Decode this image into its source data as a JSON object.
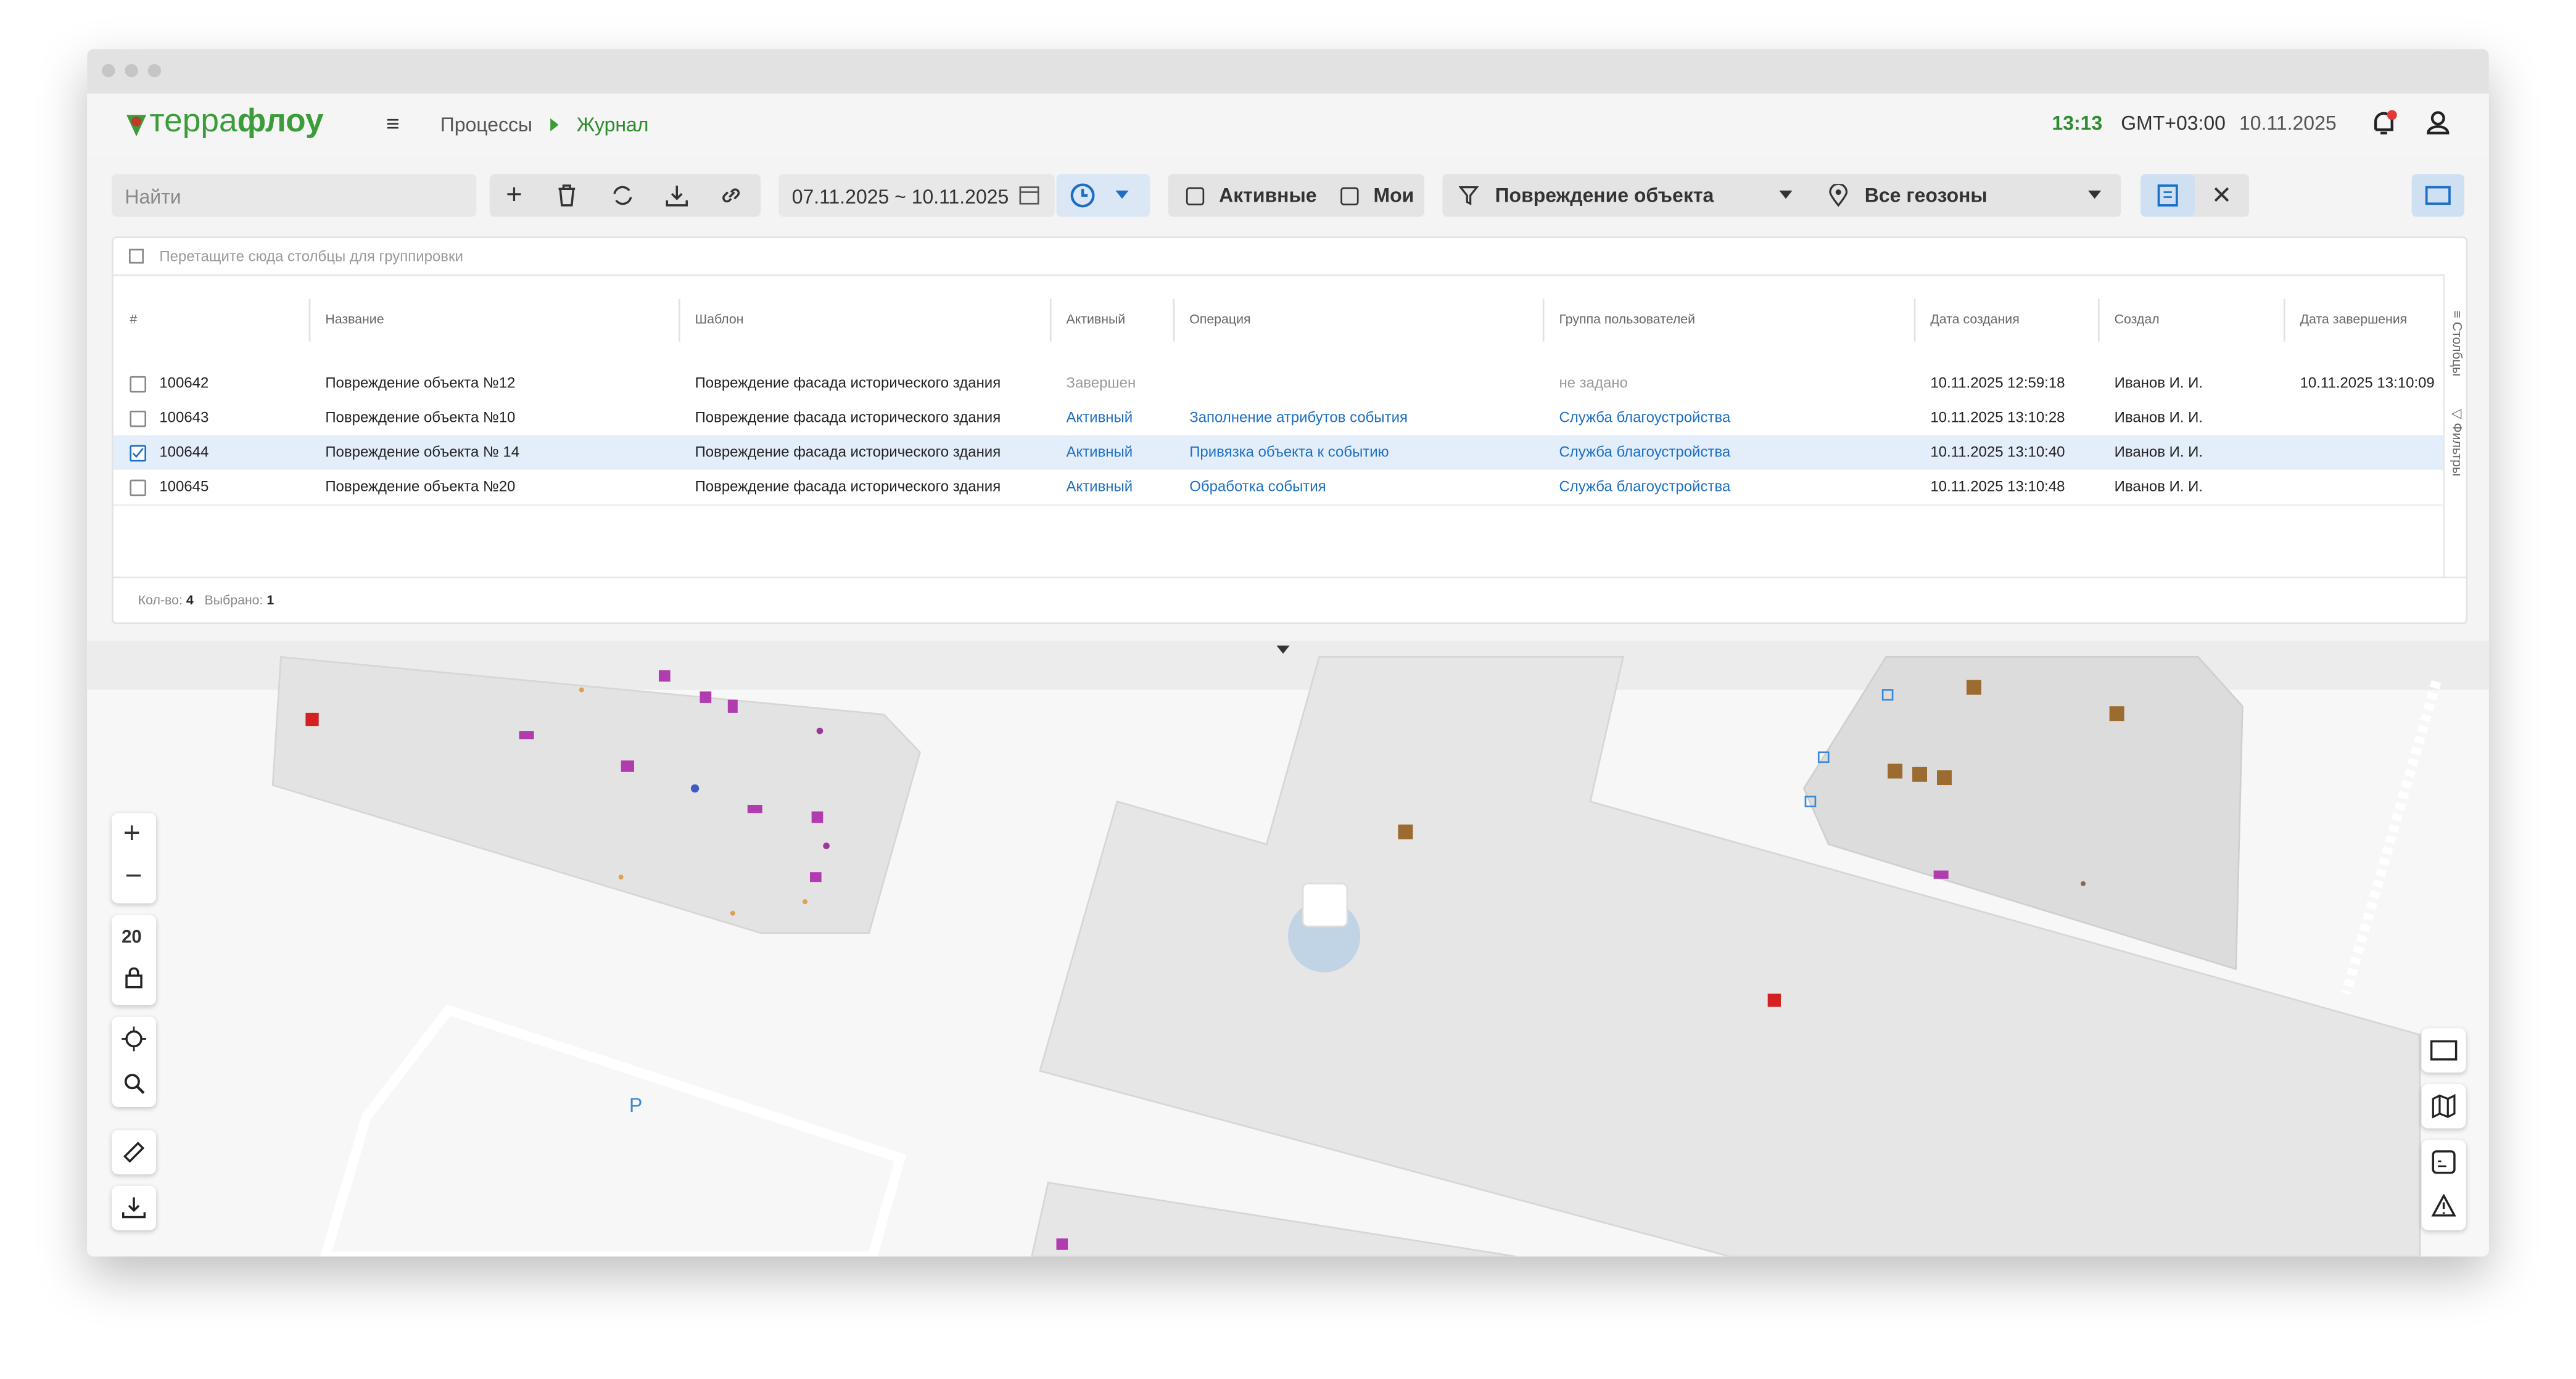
{
  "header": {
    "logo_a": "терра",
    "logo_b": "флоу",
    "breadcrumb": [
      "Процессы",
      "Журнал"
    ],
    "time": "13:13",
    "timezone": "GMT+03:00",
    "date": "10.11.2025"
  },
  "toolbar": {
    "search_placeholder": "Найти",
    "date_range": "07.11.2025 ~ 10.11.2025",
    "checkboxes": [
      "Активные",
      "Мои"
    ],
    "filter": "Повреждение объекта",
    "geozone": "Все геозоны"
  },
  "table": {
    "group_hint": "Перетащите сюда столбцы для группировки",
    "columns": [
      "#",
      "Название",
      "Шаблон",
      "Активный",
      "Операция",
      "Группа пользователей",
      "Дата создания",
      "Создал",
      "Дата завершения"
    ],
    "rows": [
      [
        "100642",
        "Повреждение объекта №12",
        "Повреждение фасада исторического здания",
        "Завершен",
        null,
        "не задано",
        "10.11.2025 12:59:18",
        "Иванов И. И.",
        "10.11.2025 13:10:09"
      ],
      [
        "100643",
        "Повреждение объекта №10",
        "Повреждение фасада исторического здания",
        "Активный",
        "Заполнение атрибутов события",
        "Служба благоустройства",
        "10.11.2025 13:10:28",
        "Иванов И. И.",
        null
      ],
      [
        "100644",
        "Повреждение объекта № 14",
        "Повреждение фасада исторического здания",
        "Активный",
        "Привязка объекта к событию",
        "Служба благоустройства",
        "10.11.2025 13:10:40",
        "Иванов И. И.",
        null
      ],
      [
        "100645",
        "Повреждение объекта №20",
        "Повреждение фасада исторического здания",
        "Активный",
        "Обработка события",
        "Служба благоустройства",
        "10.11.2025 13:10:48",
        "Иванов И. И.",
        null
      ]
    ],
    "checked": [
      false,
      false,
      true,
      false
    ],
    "side_tabs": [
      "Столбцы",
      "Фильтры"
    ],
    "footer": {
      "count_label": "Кол-во:",
      "count": "4",
      "selected_label": "Выбрано:",
      "selected": "1"
    }
  },
  "map": {
    "zoom": "20",
    "parking": "P"
  }
}
